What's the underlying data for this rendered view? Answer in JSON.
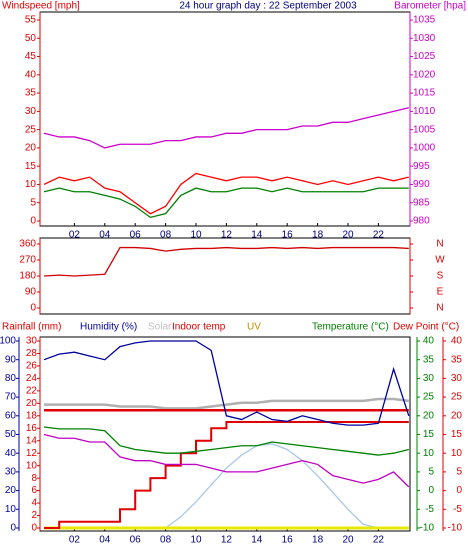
{
  "chart_data": [
    {
      "type": "line",
      "title": "24 hour graph day : 22 September 2003",
      "ylabel": "Windspeed [mph]",
      "ycolor": "#e00000",
      "y2label": "Barometer [hpa]",
      "y2color": "#cc00cc",
      "x": [
        0,
        1,
        2,
        3,
        4,
        5,
        6,
        7,
        8,
        9,
        10,
        11,
        12,
        13,
        14,
        15,
        16,
        17,
        18,
        19,
        20,
        21,
        22,
        23,
        24
      ],
      "xlim": [
        0,
        24
      ],
      "xticks": [
        {
          "value": 2,
          "label": "02"
        },
        {
          "value": 4,
          "label": "04"
        },
        {
          "value": 6,
          "label": "06"
        },
        {
          "value": 8,
          "label": "08"
        },
        {
          "value": 10,
          "label": "10"
        },
        {
          "value": 12,
          "label": "12"
        },
        {
          "value": 14,
          "label": "14"
        },
        {
          "value": 16,
          "label": "16"
        },
        {
          "value": 18,
          "label": "18"
        },
        {
          "value": 20,
          "label": "20"
        },
        {
          "value": 22,
          "label": "22"
        }
      ],
      "ylim": [
        0,
        55
      ],
      "yticks": [
        0,
        5,
        10,
        15,
        20,
        25,
        30,
        35,
        40,
        45,
        50,
        55
      ],
      "y2lim": [
        980,
        1035
      ],
      "y2ticks": [
        980,
        985,
        990,
        995,
        1000,
        1005,
        1010,
        1015,
        1020,
        1025,
        1030,
        1035
      ],
      "series": [
        {
          "color": "#ff0000",
          "values": [
            10,
            12,
            11,
            12,
            9,
            8,
            5,
            2,
            4,
            10,
            13,
            12,
            11,
            12,
            12,
            11,
            12,
            11,
            10,
            11,
            10,
            11,
            12,
            11,
            12
          ]
        },
        {
          "color": "#008000",
          "values": [
            8,
            9,
            8,
            8,
            7,
            6,
            4,
            1,
            2,
            7,
            9,
            8,
            8,
            9,
            9,
            8,
            9,
            8,
            8,
            8,
            8,
            8,
            9,
            9,
            9
          ]
        },
        {
          "color": "#cc00cc",
          "axis": "y2",
          "values": [
            1004,
            1003,
            1003,
            1002,
            1000,
            1001,
            1001,
            1001,
            1002,
            1002,
            1003,
            1003,
            1004,
            1004,
            1005,
            1005,
            1005,
            1006,
            1006,
            1007,
            1007,
            1008,
            1009,
            1010,
            1011
          ]
        }
      ]
    },
    {
      "type": "line",
      "x": [
        0,
        1,
        2,
        3,
        4,
        5,
        6,
        7,
        8,
        9,
        10,
        11,
        12,
        13,
        14,
        15,
        16,
        17,
        18,
        19,
        20,
        21,
        22,
        23,
        24
      ],
      "xlim": [
        0,
        24
      ],
      "ylim": [
        0,
        360
      ],
      "yticks": [
        0,
        90,
        180,
        270,
        360
      ],
      "ycolor": "#e00000",
      "y2lim": [
        0,
        360
      ],
      "y2color": "#e00000",
      "y2ticks": [
        {
          "value": 0,
          "label": "N"
        },
        {
          "value": 90,
          "label": "E"
        },
        {
          "value": 180,
          "label": "S"
        },
        {
          "value": 270,
          "label": "W"
        },
        {
          "value": 360,
          "label": "N"
        }
      ],
      "series": [
        {
          "color": "#d00000",
          "values": [
            180,
            185,
            180,
            185,
            190,
            340,
            340,
            335,
            320,
            330,
            335,
            335,
            340,
            335,
            335,
            340,
            335,
            340,
            335,
            340,
            340,
            340,
            340,
            340,
            335
          ]
        }
      ]
    },
    {
      "type": "line",
      "x": [
        0,
        1,
        2,
        3,
        4,
        5,
        6,
        7,
        8,
        9,
        10,
        11,
        12,
        13,
        14,
        15,
        16,
        17,
        18,
        19,
        20,
        21,
        22,
        23,
        24
      ],
      "xlim": [
        0,
        24
      ],
      "xticks": [
        {
          "value": 2,
          "label": "02"
        },
        {
          "value": 4,
          "label": "04"
        },
        {
          "value": 6,
          "label": "06"
        },
        {
          "value": 8,
          "label": "08"
        },
        {
          "value": 10,
          "label": "10"
        },
        {
          "value": 12,
          "label": "12"
        },
        {
          "value": 14,
          "label": "14"
        },
        {
          "value": 16,
          "label": "16"
        },
        {
          "value": 18,
          "label": "18"
        },
        {
          "value": 20,
          "label": "20"
        },
        {
          "value": 22,
          "label": "22"
        }
      ],
      "axes": [
        {
          "label": "Rainfall (mm)",
          "color": "#e00000",
          "lim": [
            0,
            30
          ],
          "ticks": [
            0,
            2,
            4,
            6,
            8,
            10,
            12,
            14,
            16,
            18,
            20,
            22,
            24,
            26,
            28,
            30
          ]
        },
        {
          "label": "Humidity (%)",
          "color": "#0000a0",
          "lim": [
            0,
            100
          ],
          "ticks": [
            0,
            10,
            20,
            30,
            40,
            50,
            60,
            70,
            80,
            90,
            100
          ]
        },
        {
          "label": "Temperature (°C)",
          "color": "#008000",
          "lim": [
            -10,
            40
          ],
          "ticks": [
            -10,
            -5,
            0,
            5,
            10,
            15,
            20,
            25,
            30,
            35,
            40
          ]
        },
        {
          "label": "Dew Point (°C)",
          "color": "#e00000",
          "lim": [
            -10,
            40
          ],
          "ticks": [
            -10,
            -5,
            0,
            5,
            10,
            15,
            20,
            25,
            30,
            35,
            40
          ]
        }
      ],
      "series": [
        {
          "name": "Solar",
          "color": "#a8c8e8",
          "label_color": "#c0c0c0",
          "axis": 1,
          "values": [
            0,
            0,
            0,
            0,
            0,
            0,
            0,
            0,
            0,
            6,
            14,
            23,
            32,
            39,
            44,
            45,
            42,
            36,
            28,
            19,
            10,
            2,
            0,
            0,
            0
          ]
        },
        {
          "color": "#b0b0b0",
          "axis": 2,
          "width": 2.5,
          "values": [
            23,
            23,
            23,
            23,
            23,
            22.5,
            22.5,
            22.5,
            22,
            22,
            22,
            22.5,
            23,
            23.5,
            23.5,
            24,
            24,
            24,
            24,
            24,
            24,
            24,
            24.5,
            24.5,
            24
          ]
        },
        {
          "name": "Indoor temp",
          "color": "#e00000",
          "label_color": "#e00000",
          "axis": 2,
          "width": 2.5,
          "values": [
            21.5,
            21.5,
            21.5,
            21.5,
            21.5,
            21.5,
            21.5,
            21.5,
            21.5,
            21.5,
            21.5,
            21.5,
            21.5,
            21.5,
            21.5,
            21.5,
            21.5,
            21.5,
            21.5,
            21.5,
            21.5,
            21.5,
            21.5,
            21.5,
            21.5
          ]
        },
        {
          "name": "UV",
          "color": "#e8e800",
          "label_color": "#c09000",
          "axis": 2,
          "width": 3,
          "values": [
            -10,
            -10,
            -10,
            -10,
            -10,
            -10,
            -10,
            -10,
            -10,
            -10,
            -10,
            -10,
            -10,
            -10,
            -10,
            -10,
            -10,
            -10,
            -10,
            -10,
            -10,
            -10,
            -10,
            -10,
            -10
          ]
        },
        {
          "color": "#e00000",
          "axis": 0,
          "step": true,
          "width": 2,
          "values": [
            0,
            1,
            1,
            1,
            1,
            3,
            6,
            8,
            10,
            12,
            14,
            16,
            17,
            17,
            17,
            17,
            17,
            17,
            17,
            17,
            17,
            17,
            17,
            17,
            17
          ]
        },
        {
          "color": "#0000a0",
          "axis": 1,
          "values": [
            90,
            93,
            94,
            92,
            90,
            97,
            99,
            100,
            100,
            100,
            100,
            95,
            60,
            58,
            62,
            58,
            57,
            60,
            58,
            56,
            55,
            55,
            56,
            85,
            60
          ]
        },
        {
          "color": "#008000",
          "axis": 2,
          "values": [
            17,
            16.5,
            16.5,
            16.5,
            16,
            12,
            11,
            10.5,
            10,
            10,
            10.5,
            11,
            11.5,
            12,
            12,
            13,
            12.5,
            12,
            11.5,
            11,
            10.5,
            10,
            9.5,
            10,
            11
          ]
        },
        {
          "color": "#c000c0",
          "axis": 3,
          "values": [
            15,
            14,
            14,
            13,
            13,
            9,
            8,
            8,
            7,
            7,
            7,
            6,
            5,
            5,
            5,
            6,
            7,
            8,
            7,
            4,
            3,
            2,
            3,
            5,
            1
          ]
        }
      ]
    }
  ]
}
